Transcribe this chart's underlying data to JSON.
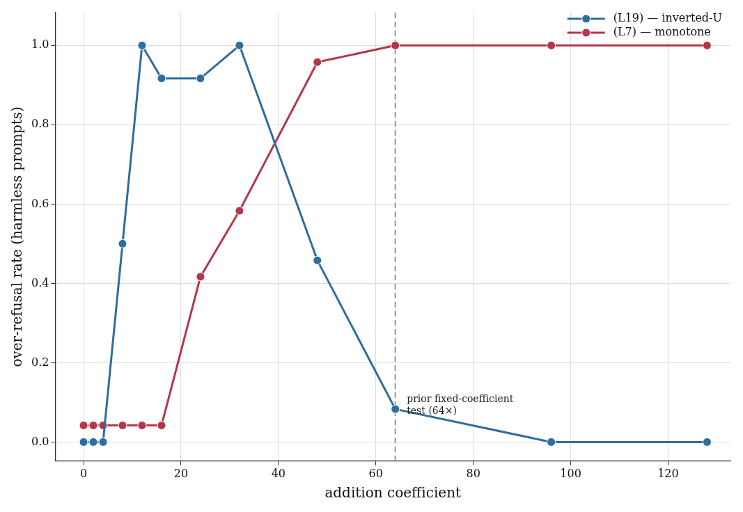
{
  "chart_data": {
    "type": "line",
    "xlabel": "addition coefficient",
    "ylabel": "over-refusal rate (harmless prompts)",
    "xlim": [
      -5.8,
      132.8
    ],
    "xticks": [
      0,
      20,
      40,
      60,
      80,
      100,
      120
    ],
    "ylim": [
      -0.048,
      1.083
    ],
    "yticks": [
      {
        "value": 0,
        "label": "0.0"
      },
      {
        "value": 0.2,
        "label": "0.2"
      },
      {
        "value": 0.4,
        "label": "0.4"
      },
      {
        "value": 0.6,
        "label": "0.6"
      },
      {
        "value": 0.8,
        "label": "0.8"
      },
      {
        "value": 1,
        "label": "1.0"
      }
    ],
    "grid": true,
    "legend": "top right",
    "marker": "circle",
    "line_style": "solid",
    "series": [
      {
        "name": "(L19) — inverted-U",
        "color": "#2e6d9e",
        "x": [
          0,
          2,
          4,
          8,
          12,
          16,
          24,
          32,
          48,
          64,
          96,
          128
        ],
        "values": [
          0,
          0,
          0,
          0.5,
          1,
          0.917,
          0.917,
          1,
          0.458,
          0.083,
          0,
          0
        ]
      },
      {
        "name": "(L7) — monotone",
        "color": "#b5364b",
        "x": [
          0,
          2,
          4,
          8,
          12,
          16,
          24,
          32,
          48,
          64,
          96,
          128
        ],
        "values": [
          0.042,
          0.042,
          0.042,
          0.042,
          0.042,
          0.042,
          0.417,
          0.583,
          0.958,
          1,
          1,
          1
        ]
      }
    ],
    "ref_lines": [
      {
        "axis": "x",
        "value": 64,
        "color": "#a0a0a8",
        "line_style": "dashed"
      }
    ],
    "annotations": [
      {
        "text": "prior fixed-coefficient\ntest (64×)",
        "x": 65.5,
        "y": 0.083
      }
    ]
  }
}
